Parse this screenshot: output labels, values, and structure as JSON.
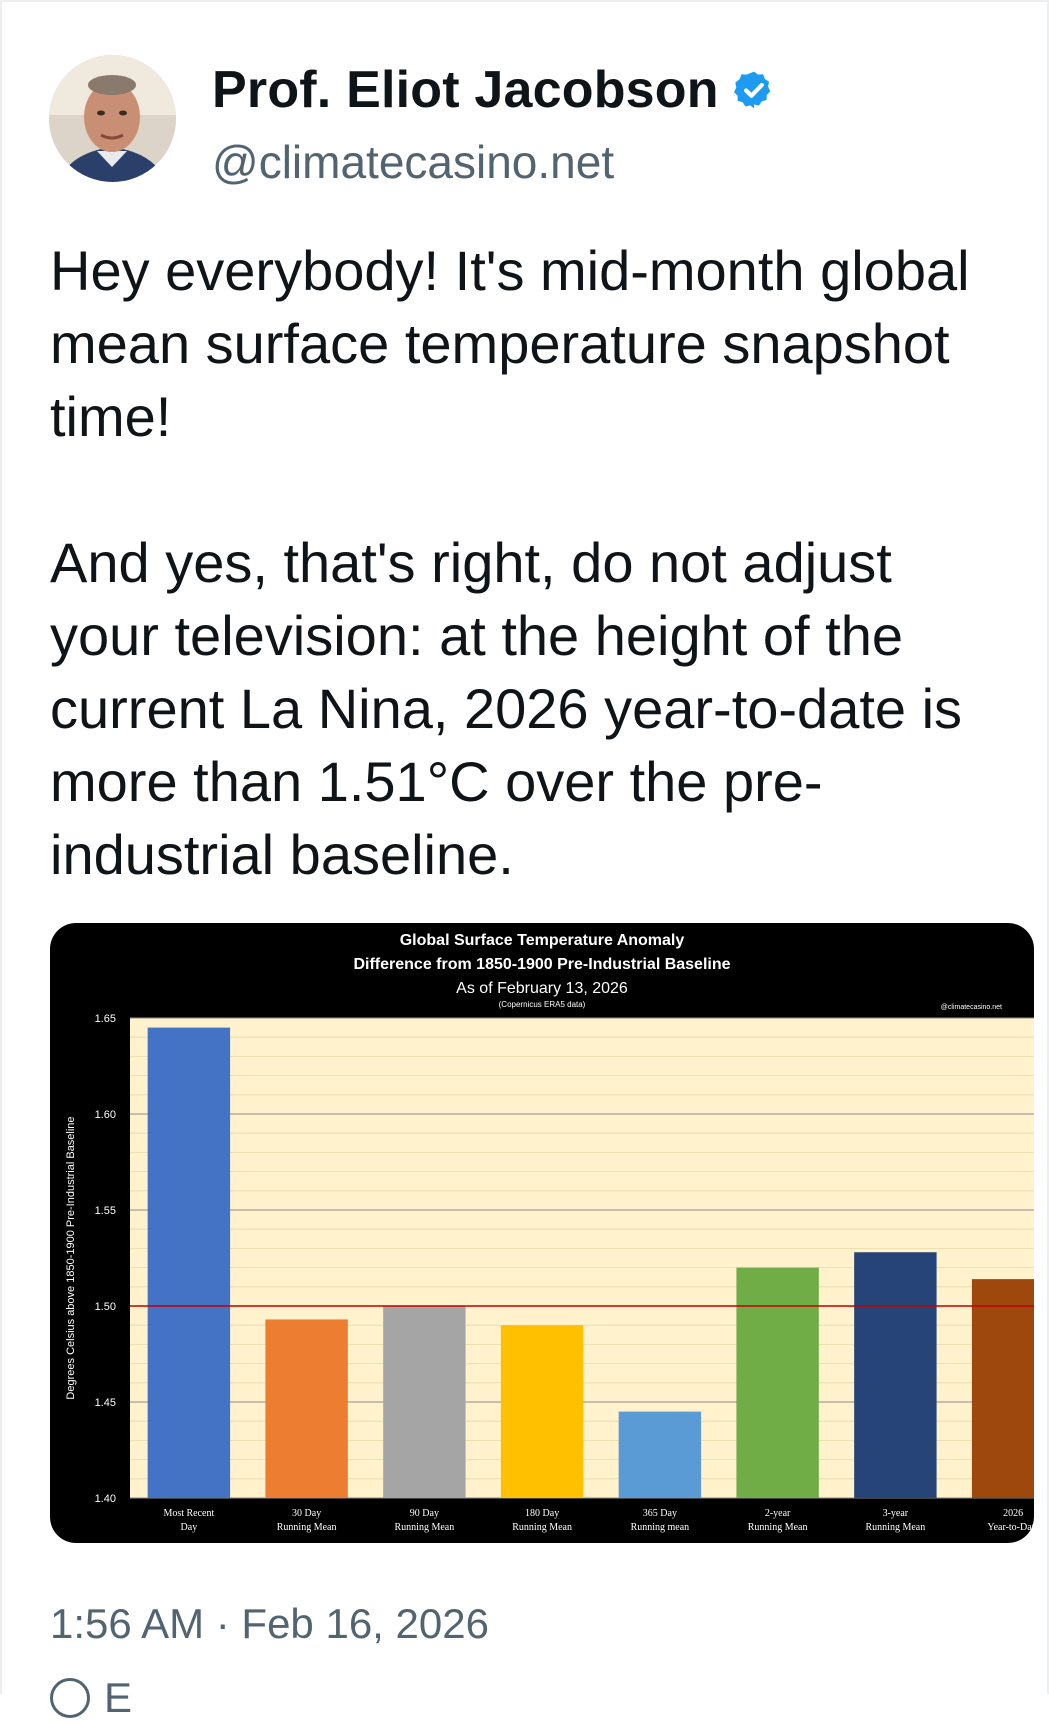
{
  "author": {
    "name": "Prof. Eliot Jacobson",
    "handle": "@climatecasino.net",
    "verified": true
  },
  "post": {
    "paragraphs": [
      "Hey everybody! It's mid-month global mean surface temperature snapshot time!",
      "And yes, that's right, do not adjust your television: at the height of the current La Nina, 2026 year-to-date is more than 1.51°C over the pre-industrial baseline."
    ],
    "timestamp": "1:56 AM · Feb 16, 2026",
    "footer_text": "E"
  },
  "colors": {
    "plot_bg": "#fff2cc",
    "threshold_line": "#c00000",
    "verified_blue": "#1d9bf0"
  },
  "chart_data": {
    "type": "bar",
    "title": "Global Surface Temperature Anomaly",
    "subtitle": "Difference from 1850-1900 Pre-Industrial Baseline",
    "date_line": "As of February 13, 2026",
    "source_note": "(Copernicus ERA5 data)",
    "watermark": "@climatecasino.net",
    "ylabel": "Degrees Celsius above 1850-1900 Pre-Industrial Baseline",
    "xlabel": "",
    "ylim": [
      1.4,
      1.65
    ],
    "yticks": [
      "1.65",
      "1.60",
      "1.55",
      "1.50",
      "1.45",
      "1.40"
    ],
    "threshold": 1.5,
    "grid": true,
    "categories": [
      [
        "Most Recent",
        "Day"
      ],
      [
        "30 Day",
        "Running Mean"
      ],
      [
        "90 Day",
        "Running Mean"
      ],
      [
        "180 Day",
        "Running Mean"
      ],
      [
        "365 Day",
        "Running mean"
      ],
      [
        "2-year",
        "Running Mean"
      ],
      [
        "3-year",
        "Running Mean"
      ],
      [
        "2026",
        "Year-to-Date"
      ]
    ],
    "values": [
      1.645,
      1.493,
      1.5,
      1.49,
      1.445,
      1.52,
      1.528,
      1.514
    ],
    "bar_colors": [
      "#4472c4",
      "#ed7d31",
      "#a5a5a5",
      "#ffc000",
      "#5b9bd5",
      "#70ad47",
      "#264478",
      "#9e480e"
    ]
  }
}
